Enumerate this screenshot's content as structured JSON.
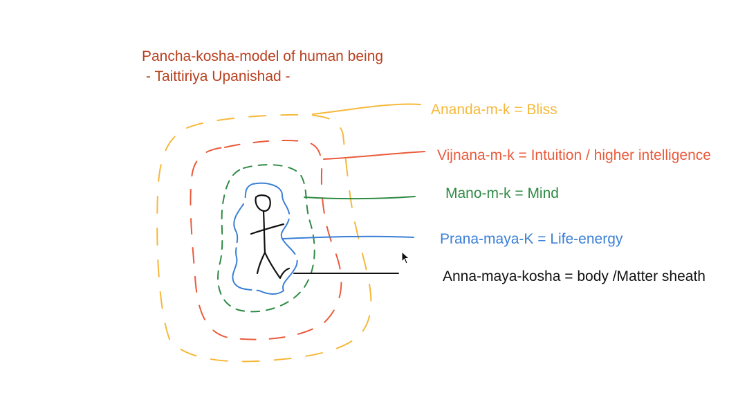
{
  "title": "Pancha-kosha-model of human being",
  "subtitle": "- Taittiriya Upanishad -",
  "layers": [
    {
      "id": "ananda",
      "label": "Ananda-m-k = Bliss",
      "color": "#f6b83a"
    },
    {
      "id": "vijnana",
      "label": "Vijnana-m-k = Intuition / higher intelligence",
      "color": "#ea5a3b"
    },
    {
      "id": "mano",
      "label": "Mano-m-k = Mind",
      "color": "#2e8a44"
    },
    {
      "id": "prana",
      "label": "Prana-maya-K = Life-energy",
      "color": "#3a7fd6"
    },
    {
      "id": "anna",
      "label": "Anna-maya-kosha = body /Matter sheath",
      "color": "#111111"
    }
  ],
  "icons": {
    "figure": "stick-figure-icon",
    "cursor": "mouse-cursor-icon"
  }
}
